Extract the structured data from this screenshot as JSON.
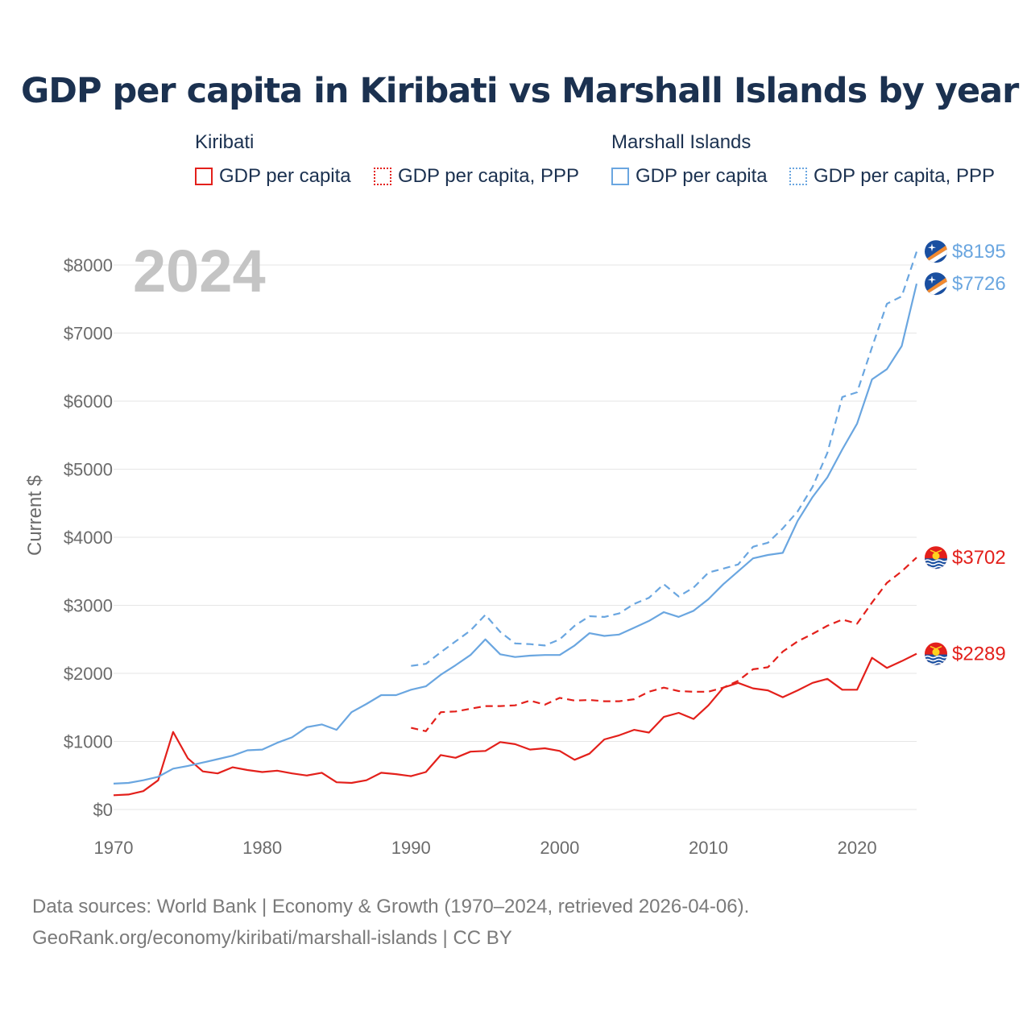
{
  "footer": {
    "line1": "Data sources: World Bank | Economy & Growth (1970–2024, retrieved 2026-04-06).",
    "line2": "GeoRank.org/economy/kiribati/marshall-islands | CC BY"
  },
  "colors": {
    "kiribati": "#e3201b",
    "marshall": "#6aa6e0",
    "grid": "#e6e6e6",
    "year_watermark": "#c4c4c4"
  },
  "legend": {
    "groups": [
      {
        "country": "Kiribati",
        "items": [
          {
            "label": "GDP per capita",
            "style": "solid",
            "color": "#e3201b"
          },
          {
            "label": "GDP per capita, PPP",
            "style": "dotted",
            "color": "#e3201b"
          }
        ]
      },
      {
        "country": "Marshall Islands",
        "items": [
          {
            "label": "GDP per capita",
            "style": "solid",
            "color": "#6aa6e0"
          },
          {
            "label": "GDP per capita, PPP",
            "style": "dotted",
            "color": "#6aa6e0"
          }
        ]
      }
    ]
  },
  "chart_data": {
    "type": "line",
    "title": "GDP per capita in Kiribati vs Marshall Islands by year",
    "watermark_year": "2024",
    "xlabel": "",
    "ylabel": "Current $",
    "xlim": [
      1970,
      2024
    ],
    "ylim": [
      0,
      8300
    ],
    "x_ticks": [
      1970,
      1980,
      1990,
      2000,
      2010,
      2020
    ],
    "y_ticks": [
      0,
      1000,
      2000,
      3000,
      4000,
      5000,
      6000,
      7000,
      8000
    ],
    "y_tick_labels": [
      "$0",
      "$1000",
      "$2000",
      "$3000",
      "$4000",
      "$5000",
      "$6000",
      "$7000",
      "$8000"
    ],
    "grid": true,
    "series": [
      {
        "name": "Kiribati GDP per capita",
        "country": "Kiribati",
        "style": "solid",
        "color": "#e3201b",
        "end_label": "$2289",
        "x": [
          1970,
          1971,
          1972,
          1973,
          1974,
          1975,
          1976,
          1977,
          1978,
          1979,
          1980,
          1981,
          1982,
          1983,
          1984,
          1985,
          1986,
          1987,
          1988,
          1989,
          1990,
          1991,
          1992,
          1993,
          1994,
          1995,
          1996,
          1997,
          1998,
          1999,
          2000,
          2001,
          2002,
          2003,
          2004,
          2005,
          2006,
          2007,
          2008,
          2009,
          2010,
          2011,
          2012,
          2013,
          2014,
          2015,
          2016,
          2017,
          2018,
          2019,
          2020,
          2021,
          2022,
          2023,
          2024
        ],
        "values": [
          210,
          220,
          270,
          430,
          1140,
          750,
          560,
          530,
          620,
          580,
          550,
          570,
          530,
          500,
          540,
          400,
          390,
          430,
          540,
          520,
          490,
          550,
          800,
          760,
          850,
          860,
          990,
          960,
          880,
          900,
          860,
          730,
          820,
          1030,
          1090,
          1170,
          1130,
          1360,
          1420,
          1330,
          1530,
          1790,
          1860,
          1780,
          1750,
          1650,
          1750,
          1860,
          1920,
          1760,
          1760,
          2230,
          2080,
          2180,
          2289
        ]
      },
      {
        "name": "Kiribati GDP per capita, PPP",
        "country": "Kiribati",
        "style": "dashed",
        "color": "#e3201b",
        "end_label": "$3702",
        "x": [
          1990,
          1991,
          1992,
          1993,
          1994,
          1995,
          1996,
          1997,
          1998,
          1999,
          2000,
          2001,
          2002,
          2003,
          2004,
          2005,
          2006,
          2007,
          2008,
          2009,
          2010,
          2011,
          2012,
          2013,
          2014,
          2015,
          2016,
          2017,
          2018,
          2019,
          2020,
          2021,
          2022,
          2023,
          2024
        ],
        "values": [
          1200,
          1150,
          1430,
          1440,
          1480,
          1520,
          1520,
          1530,
          1600,
          1540,
          1640,
          1600,
          1610,
          1590,
          1590,
          1620,
          1730,
          1790,
          1740,
          1730,
          1730,
          1790,
          1890,
          2060,
          2090,
          2320,
          2470,
          2580,
          2700,
          2790,
          2730,
          3040,
          3330,
          3500,
          3702
        ]
      },
      {
        "name": "Marshall Islands GDP per capita",
        "country": "Marshall Islands",
        "style": "solid",
        "color": "#6aa6e0",
        "end_label": "$7726",
        "x": [
          1970,
          1971,
          1972,
          1973,
          1974,
          1975,
          1976,
          1977,
          1978,
          1979,
          1980,
          1981,
          1982,
          1983,
          1984,
          1985,
          1986,
          1987,
          1988,
          1989,
          1990,
          1991,
          1992,
          1993,
          1994,
          1995,
          1996,
          1997,
          1998,
          1999,
          2000,
          2001,
          2002,
          2003,
          2004,
          2005,
          2006,
          2007,
          2008,
          2009,
          2010,
          2011,
          2012,
          2013,
          2014,
          2015,
          2016,
          2017,
          2018,
          2019,
          2020,
          2021,
          2022,
          2023,
          2024
        ],
        "values": [
          380,
          390,
          430,
          480,
          600,
          640,
          690,
          740,
          790,
          870,
          880,
          980,
          1060,
          1210,
          1250,
          1170,
          1430,
          1550,
          1680,
          1680,
          1760,
          1810,
          1980,
          2120,
          2270,
          2500,
          2280,
          2240,
          2260,
          2270,
          2270,
          2410,
          2590,
          2550,
          2570,
          2670,
          2770,
          2900,
          2830,
          2920,
          3090,
          3310,
          3500,
          3690,
          3740,
          3770,
          4240,
          4590,
          4880,
          5290,
          5670,
          6320,
          6470,
          6810,
          7726
        ]
      },
      {
        "name": "Marshall Islands GDP per capita, PPP",
        "country": "Marshall Islands",
        "style": "dashed",
        "color": "#6aa6e0",
        "end_label": "$8195",
        "x": [
          1990,
          1991,
          1992,
          1993,
          1994,
          1995,
          1996,
          1997,
          1998,
          1999,
          2000,
          2001,
          2002,
          2003,
          2004,
          2005,
          2006,
          2007,
          2008,
          2009,
          2010,
          2011,
          2012,
          2013,
          2014,
          2015,
          2016,
          2017,
          2018,
          2019,
          2020,
          2021,
          2022,
          2023,
          2024
        ],
        "values": [
          2110,
          2140,
          2310,
          2470,
          2630,
          2860,
          2610,
          2440,
          2430,
          2410,
          2500,
          2700,
          2840,
          2830,
          2880,
          3020,
          3110,
          3310,
          3130,
          3260,
          3480,
          3540,
          3600,
          3860,
          3920,
          4130,
          4380,
          4740,
          5240,
          6060,
          6130,
          6790,
          7430,
          7540,
          8195
        ]
      }
    ]
  }
}
